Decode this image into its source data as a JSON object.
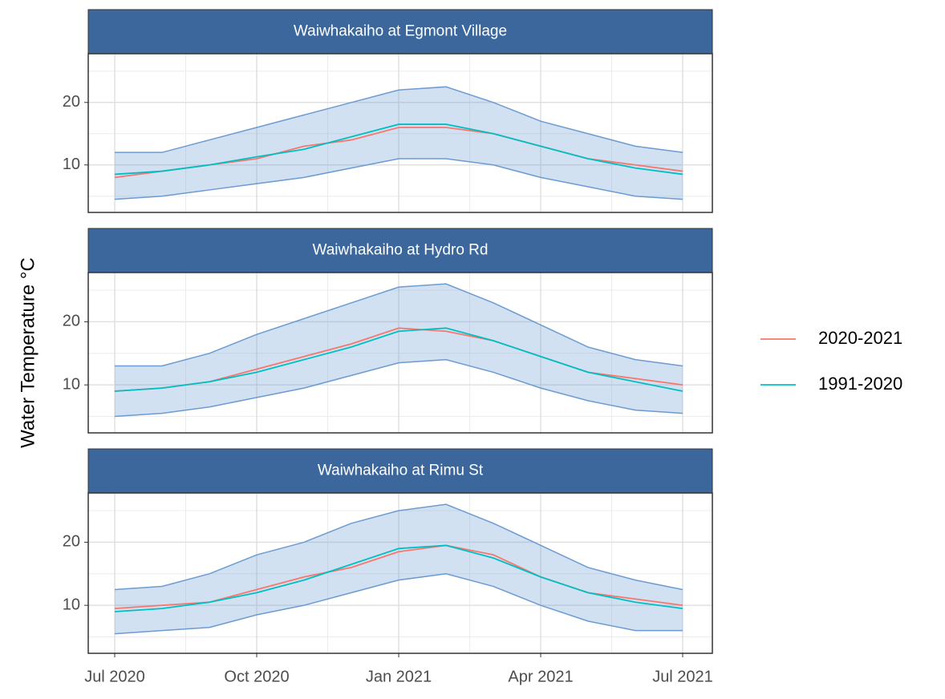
{
  "chart_data": {
    "type": "line",
    "y_label": "Water Temperature °C",
    "x": [
      "2020-07",
      "2020-08",
      "2020-09",
      "2020-10",
      "2020-11",
      "2020-12",
      "2021-01",
      "2021-02",
      "2021-03",
      "2021-04",
      "2021-05",
      "2021-06",
      "2021-07"
    ],
    "xticks": [
      {
        "value": "2020-07",
        "label": "Jul 2020"
      },
      {
        "value": "2020-10",
        "label": "Oct 2020"
      },
      {
        "value": "2021-01",
        "label": "Jan 2021"
      },
      {
        "value": "2021-04",
        "label": "Apr 2021"
      },
      {
        "value": "2021-07",
        "label": "Jul 2021"
      }
    ],
    "ylim": [
      2.4,
      27.8
    ],
    "yticks": [
      10,
      20
    ],
    "grid": true,
    "legend_position": "right",
    "series": [
      {
        "name": "2020-2021",
        "color": "#F8766D"
      },
      {
        "name": "1991-2020",
        "color": "#00BFC4"
      }
    ],
    "band_color": "#6b9bd1",
    "facets": [
      {
        "title": "Waiwhakaiho at Egmont Village",
        "series": [
          {
            "values": [
              8,
              9,
              10,
              11,
              13,
              14,
              16,
              16,
              15,
              13,
              11,
              10,
              9
            ]
          },
          {
            "values": [
              8.5,
              9,
              10,
              11.3,
              12.5,
              14.5,
              16.5,
              16.5,
              15,
              13,
              11,
              9.5,
              8.5
            ]
          }
        ],
        "band": {
          "lower": [
            4.5,
            5,
            6,
            7,
            8,
            9.5,
            11,
            11,
            10,
            8,
            6.5,
            5,
            4.5
          ],
          "upper": [
            12,
            12,
            14,
            16,
            18,
            20,
            22,
            22.5,
            20,
            17,
            15,
            13,
            12
          ]
        }
      },
      {
        "title": "Waiwhakaiho at Hydro Rd",
        "series": [
          {
            "values": [
              9,
              9.5,
              10.5,
              12.5,
              14.5,
              16.5,
              19,
              18.5,
              17,
              14.5,
              12,
              11,
              10
            ]
          },
          {
            "values": [
              9,
              9.5,
              10.5,
              12,
              14,
              16,
              18.5,
              19,
              17,
              14.5,
              12,
              10.5,
              9
            ]
          }
        ],
        "band": {
          "lower": [
            5,
            5.5,
            6.5,
            8,
            9.5,
            11.5,
            13.5,
            14,
            12,
            9.5,
            7.5,
            6,
            5.5
          ],
          "upper": [
            13,
            13,
            15,
            18,
            20.5,
            23,
            25.5,
            26,
            23,
            19.5,
            16,
            14,
            13
          ]
        }
      },
      {
        "title": "Waiwhakaiho at Rimu St",
        "series": [
          {
            "values": [
              9.5,
              10,
              10.5,
              12.5,
              14.5,
              16,
              18.5,
              19.5,
              18,
              14.5,
              12,
              11,
              10
            ]
          },
          {
            "values": [
              9,
              9.5,
              10.5,
              12,
              14,
              16.5,
              19,
              19.5,
              17.5,
              14.5,
              12,
              10.5,
              9.5
            ]
          }
        ],
        "band": {
          "lower": [
            5.5,
            6,
            6.5,
            8.5,
            10,
            12,
            14,
            15,
            13,
            10,
            7.5,
            6,
            6
          ],
          "upper": [
            12.5,
            13,
            15,
            18,
            20,
            23,
            25,
            26,
            23,
            19.5,
            16,
            14,
            12.5
          ]
        }
      }
    ]
  }
}
